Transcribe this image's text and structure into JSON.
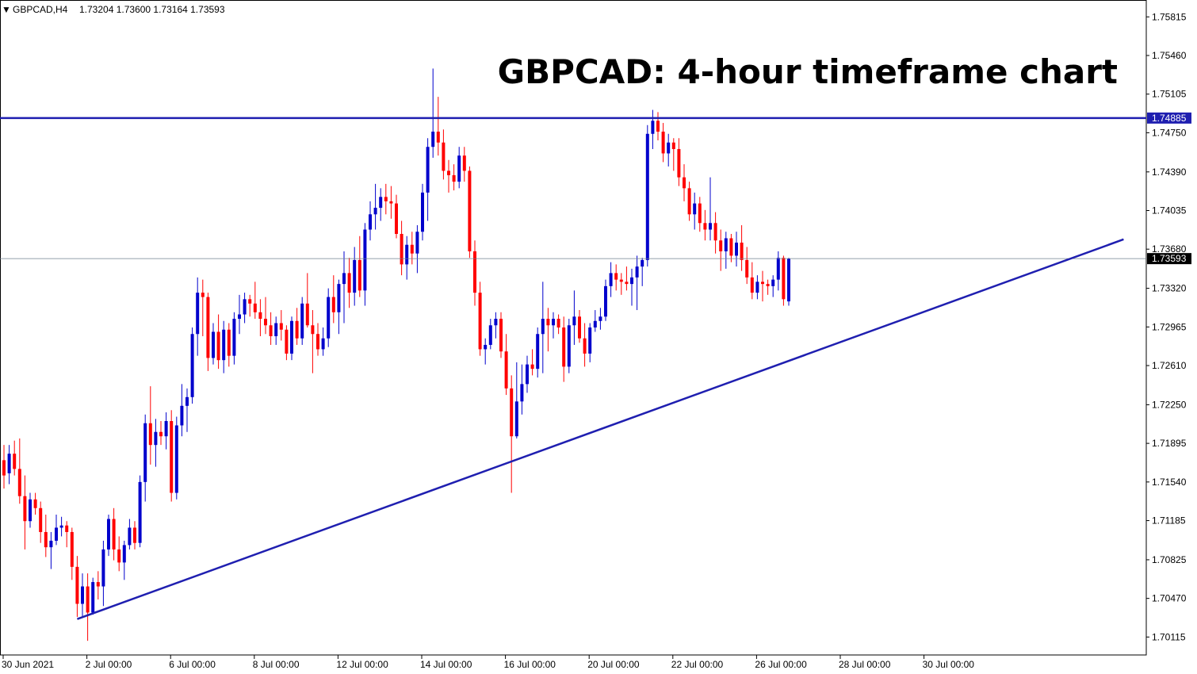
{
  "header": {
    "symbol": "GBPCAD,H4",
    "ohlc": "1.73204 1.73600 1.73164 1.73593",
    "title": "GBPCAD: 4-hour timeframe chart"
  },
  "colors": {
    "bull": "#0000cc",
    "bear": "#ff0000",
    "trendline": "#1f1fb0",
    "resistance": "#1f1fb0",
    "price_line": "#708090",
    "axis": "#000000"
  },
  "chart_data": {
    "type": "candlestick",
    "symbol": "GBPCAD",
    "timeframe": "H4",
    "ylim": [
      1.6995,
      1.7597
    ],
    "y_ticks": [
      1.75815,
      1.7546,
      1.75105,
      1.7475,
      1.7439,
      1.74035,
      1.7368,
      1.7332,
      1.72965,
      1.7261,
      1.7225,
      1.71895,
      1.7154,
      1.71185,
      1.70825,
      1.7047,
      1.70115
    ],
    "y_tick_labels": [
      "1.75815",
      "1.75460",
      "1.75105",
      "1.74750",
      "1.74390",
      "1.74035",
      "1.73680",
      "1.73320",
      "1.72965",
      "1.72610",
      "1.72250",
      "1.71895",
      "1.71540",
      "1.71185",
      "1.70825",
      "1.70470",
      "1.70115"
    ],
    "x_ticks": [
      {
        "label": "30 Jun 2021",
        "index": 0
      },
      {
        "label": "2 Jul 00:00",
        "index": 16
      },
      {
        "label": "6 Jul 00:00",
        "index": 32
      },
      {
        "label": "8 Jul 00:00",
        "index": 48
      },
      {
        "label": "12 Jul 00:00",
        "index": 64
      },
      {
        "label": "14 Jul 00:00",
        "index": 80
      },
      {
        "label": "16 Jul 00:00",
        "index": 96
      },
      {
        "label": "20 Jul 00:00",
        "index": 112
      },
      {
        "label": "22 Jul 00:00",
        "index": 128
      },
      {
        "label": "26 Jul 00:00",
        "index": 144
      },
      {
        "label": "28 Jul 00:00",
        "index": 160
      },
      {
        "label": "30 Jul 00:00",
        "index": 176
      }
    ],
    "candles": [
      [
        1.7174,
        1.7188,
        1.7148,
        1.716
      ],
      [
        1.7162,
        1.7188,
        1.7152,
        1.718
      ],
      [
        1.718,
        1.7192,
        1.716,
        1.7166
      ],
      [
        1.7166,
        1.7194,
        1.7134,
        1.7141
      ],
      [
        1.7141,
        1.716,
        1.7092,
        1.7118
      ],
      [
        1.7118,
        1.7144,
        1.7112,
        1.7138
      ],
      [
        1.7138,
        1.7144,
        1.7124,
        1.713
      ],
      [
        1.713,
        1.7136,
        1.7098,
        1.7108
      ],
      [
        1.7108,
        1.7124,
        1.7085,
        1.7094
      ],
      [
        1.7094,
        1.7108,
        1.7074,
        1.71
      ],
      [
        1.71,
        1.7124,
        1.7096,
        1.7112
      ],
      [
        1.7112,
        1.7122,
        1.7104,
        1.7114
      ],
      [
        1.7114,
        1.7118,
        1.7094,
        1.7108
      ],
      [
        1.7108,
        1.7112,
        1.7064,
        1.7076
      ],
      [
        1.7076,
        1.7086,
        1.703,
        1.7042
      ],
      [
        1.7042,
        1.707,
        1.703,
        1.7058
      ],
      [
        1.7058,
        1.707,
        1.7008,
        1.7034
      ],
      [
        1.7034,
        1.7066,
        1.7032,
        1.7062
      ],
      [
        1.7062,
        1.7072,
        1.7046,
        1.7058
      ],
      [
        1.7058,
        1.71,
        1.704,
        1.7092
      ],
      [
        1.7092,
        1.7124,
        1.7086,
        1.712
      ],
      [
        1.712,
        1.713,
        1.7082,
        1.7092
      ],
      [
        1.7092,
        1.7104,
        1.7072,
        1.708
      ],
      [
        1.708,
        1.71,
        1.7064,
        1.7096
      ],
      [
        1.7096,
        1.712,
        1.7092,
        1.7112
      ],
      [
        1.7112,
        1.7118,
        1.7092,
        1.7098
      ],
      [
        1.7098,
        1.716,
        1.7094,
        1.7154
      ],
      [
        1.7154,
        1.7216,
        1.7136,
        1.7208
      ],
      [
        1.7208,
        1.7242,
        1.717,
        1.7188
      ],
      [
        1.7188,
        1.7212,
        1.7168,
        1.72
      ],
      [
        1.72,
        1.721,
        1.7188,
        1.7196
      ],
      [
        1.7196,
        1.7218,
        1.7184,
        1.721
      ],
      [
        1.721,
        1.722,
        1.7136,
        1.7144
      ],
      [
        1.7144,
        1.7214,
        1.7138,
        1.7206
      ],
      [
        1.7206,
        1.7244,
        1.7196,
        1.7224
      ],
      [
        1.7224,
        1.724,
        1.72,
        1.7232
      ],
      [
        1.7232,
        1.7296,
        1.7226,
        1.729
      ],
      [
        1.729,
        1.7342,
        1.727,
        1.7328
      ],
      [
        1.7328,
        1.734,
        1.7288,
        1.7324
      ],
      [
        1.7324,
        1.7328,
        1.7256,
        1.7268
      ],
      [
        1.7268,
        1.73,
        1.7262,
        1.7292
      ],
      [
        1.7292,
        1.7308,
        1.7258,
        1.7266
      ],
      [
        1.7266,
        1.7302,
        1.7254,
        1.7294
      ],
      [
        1.7294,
        1.73,
        1.726,
        1.727
      ],
      [
        1.727,
        1.731,
        1.7262,
        1.7304
      ],
      [
        1.7304,
        1.7326,
        1.729,
        1.7308
      ],
      [
        1.7308,
        1.7328,
        1.73,
        1.7322
      ],
      [
        1.7322,
        1.7326,
        1.7306,
        1.7318
      ],
      [
        1.7318,
        1.7338,
        1.7304,
        1.731
      ],
      [
        1.731,
        1.7322,
        1.7288,
        1.7304
      ],
      [
        1.7304,
        1.7324,
        1.729,
        1.7298
      ],
      [
        1.7298,
        1.731,
        1.728,
        1.7288
      ],
      [
        1.7288,
        1.7306,
        1.728,
        1.73
      ],
      [
        1.73,
        1.7312,
        1.7284,
        1.7294
      ],
      [
        1.7294,
        1.7298,
        1.7266,
        1.7272
      ],
      [
        1.7272,
        1.7306,
        1.7266,
        1.7302
      ],
      [
        1.7302,
        1.7314,
        1.728,
        1.7286
      ],
      [
        1.7286,
        1.7324,
        1.728,
        1.7318
      ],
      [
        1.7318,
        1.7346,
        1.7296,
        1.7298
      ],
      [
        1.7298,
        1.7312,
        1.7254,
        1.729
      ],
      [
        1.729,
        1.73,
        1.727,
        1.7276
      ],
      [
        1.7276,
        1.7296,
        1.727,
        1.7286
      ],
      [
        1.7286,
        1.7332,
        1.7278,
        1.7324
      ],
      [
        1.7324,
        1.7344,
        1.73,
        1.731
      ],
      [
        1.731,
        1.734,
        1.729,
        1.7336
      ],
      [
        1.7336,
        1.7366,
        1.73,
        1.7346
      ],
      [
        1.7346,
        1.736,
        1.7314,
        1.7328
      ],
      [
        1.7328,
        1.737,
        1.7316,
        1.7358
      ],
      [
        1.7358,
        1.738,
        1.7324,
        1.733
      ],
      [
        1.733,
        1.7392,
        1.7316,
        1.7386
      ],
      [
        1.7386,
        1.7412,
        1.7376,
        1.74
      ],
      [
        1.74,
        1.7428,
        1.7386,
        1.7406
      ],
      [
        1.7406,
        1.7424,
        1.7394,
        1.7416
      ],
      [
        1.7416,
        1.7428,
        1.74,
        1.7412
      ],
      [
        1.7412,
        1.7426,
        1.7396,
        1.741
      ],
      [
        1.741,
        1.7418,
        1.7378,
        1.7382
      ],
      [
        1.7382,
        1.7394,
        1.7344,
        1.7354
      ],
      [
        1.7354,
        1.738,
        1.734,
        1.7372
      ],
      [
        1.7372,
        1.7384,
        1.7354,
        1.7364
      ],
      [
        1.7364,
        1.739,
        1.7346,
        1.7384
      ],
      [
        1.7384,
        1.7428,
        1.7376,
        1.742
      ],
      [
        1.742,
        1.747,
        1.7394,
        1.7462
      ],
      [
        1.7462,
        1.7534,
        1.7452,
        1.7476
      ],
      [
        1.7476,
        1.7508,
        1.7454,
        1.7466
      ],
      [
        1.7466,
        1.7478,
        1.7432,
        1.744
      ],
      [
        1.744,
        1.745,
        1.742,
        1.7436
      ],
      [
        1.7436,
        1.7446,
        1.7422,
        1.743
      ],
      [
        1.743,
        1.7462,
        1.7424,
        1.7454
      ],
      [
        1.7454,
        1.7462,
        1.743,
        1.744
      ],
      [
        1.744,
        1.7444,
        1.736,
        1.7366
      ],
      [
        1.7366,
        1.7376,
        1.7316,
        1.7328
      ],
      [
        1.7328,
        1.7338,
        1.727,
        1.7276
      ],
      [
        1.7276,
        1.7286,
        1.7262,
        1.728
      ],
      [
        1.728,
        1.7304,
        1.7276,
        1.7298
      ],
      [
        1.7298,
        1.731,
        1.7286,
        1.7304
      ],
      [
        1.7304,
        1.731,
        1.7268,
        1.7274
      ],
      [
        1.7274,
        1.729,
        1.7234,
        1.724
      ],
      [
        1.724,
        1.7252,
        1.7144,
        1.7196
      ],
      [
        1.7196,
        1.7264,
        1.7194,
        1.7228
      ],
      [
        1.7228,
        1.7262,
        1.7216,
        1.7244
      ],
      [
        1.7244,
        1.727,
        1.7236,
        1.7262
      ],
      [
        1.7262,
        1.7276,
        1.7252,
        1.7258
      ],
      [
        1.7258,
        1.7296,
        1.725,
        1.729
      ],
      [
        1.729,
        1.7338,
        1.7254,
        1.7304
      ],
      [
        1.7304,
        1.7314,
        1.7274,
        1.7298
      ],
      [
        1.7298,
        1.731,
        1.7286,
        1.7304
      ],
      [
        1.7304,
        1.7308,
        1.729,
        1.7296
      ],
      [
        1.7296,
        1.7306,
        1.7246,
        1.726
      ],
      [
        1.726,
        1.7304,
        1.7254,
        1.7298
      ],
      [
        1.7298,
        1.733,
        1.728,
        1.7306
      ],
      [
        1.7306,
        1.7312,
        1.7282,
        1.7286
      ],
      [
        1.7286,
        1.73,
        1.726,
        1.7272
      ],
      [
        1.7272,
        1.73,
        1.7264,
        1.7296
      ],
      [
        1.7296,
        1.7312,
        1.7292,
        1.7302
      ],
      [
        1.7302,
        1.7314,
        1.7294,
        1.7306
      ],
      [
        1.7306,
        1.734,
        1.7302,
        1.7334
      ],
      [
        1.7334,
        1.7356,
        1.7324,
        1.7346
      ],
      [
        1.7346,
        1.7354,
        1.733,
        1.734
      ],
      [
        1.734,
        1.7346,
        1.7326,
        1.7338
      ],
      [
        1.7338,
        1.7352,
        1.733,
        1.7336
      ],
      [
        1.7336,
        1.735,
        1.7316,
        1.7342
      ],
      [
        1.7342,
        1.7362,
        1.7312,
        1.7352
      ],
      [
        1.7352,
        1.736,
        1.7334,
        1.7358
      ],
      [
        1.7358,
        1.7482,
        1.7352,
        1.7474
      ],
      [
        1.7474,
        1.7496,
        1.746,
        1.7486
      ],
      [
        1.7486,
        1.7494,
        1.7468,
        1.7476
      ],
      [
        1.7476,
        1.7484,
        1.7448,
        1.7456
      ],
      [
        1.7456,
        1.7474,
        1.7444,
        1.7466
      ],
      [
        1.7466,
        1.747,
        1.744,
        1.746
      ],
      [
        1.746,
        1.747,
        1.7426,
        1.7434
      ],
      [
        1.7434,
        1.7446,
        1.7412,
        1.7424
      ],
      [
        1.7424,
        1.743,
        1.7394,
        1.74
      ],
      [
        1.74,
        1.742,
        1.7386,
        1.741
      ],
      [
        1.741,
        1.7416,
        1.7384,
        1.7392
      ],
      [
        1.7392,
        1.7404,
        1.7376,
        1.7386
      ],
      [
        1.7386,
        1.7434,
        1.7376,
        1.7392
      ],
      [
        1.7392,
        1.7402,
        1.7364,
        1.7376
      ],
      [
        1.7376,
        1.7386,
        1.7348,
        1.7366
      ],
      [
        1.7366,
        1.7384,
        1.735,
        1.7378
      ],
      [
        1.7378,
        1.7382,
        1.7356,
        1.7362
      ],
      [
        1.7362,
        1.7384,
        1.7352,
        1.7374
      ],
      [
        1.7374,
        1.739,
        1.7348,
        1.7358
      ],
      [
        1.7358,
        1.737,
        1.7336,
        1.7342
      ],
      [
        1.7342,
        1.7356,
        1.7322,
        1.7328
      ],
      [
        1.7328,
        1.7344,
        1.7322,
        1.7338
      ],
      [
        1.7338,
        1.7348,
        1.732,
        1.7336
      ],
      [
        1.7336,
        1.734,
        1.7326,
        1.7334
      ],
      [
        1.7334,
        1.7344,
        1.7324,
        1.734
      ],
      [
        1.734,
        1.7366,
        1.733,
        1.736
      ],
      [
        1.736,
        1.7362,
        1.7316,
        1.7322
      ],
      [
        1.732,
        1.736,
        1.7316,
        1.7359
      ]
    ],
    "annotations": {
      "resistance": 1.74885,
      "current_price": 1.73593,
      "trendline": [
        {
          "index": 14,
          "price": 1.7028
        },
        {
          "index": 214,
          "price": 1.7377
        }
      ]
    }
  }
}
